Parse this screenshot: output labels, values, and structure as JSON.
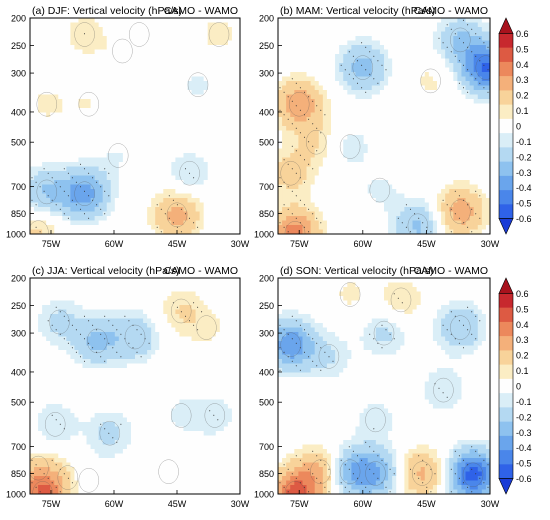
{
  "chart_data": [
    {
      "type": "heatmap",
      "title": "(a) DJF: Vertical velocity (hPa/s)",
      "subtitle": "CAMO - WAMO",
      "x_ticks": [
        "75W",
        "60W",
        "45W",
        "30W"
      ],
      "y_ticks": [
        "200",
        "250",
        "300",
        "400",
        "500",
        "700",
        "850",
        "1000"
      ],
      "xlim": [
        "80W",
        "30W"
      ],
      "ylim": [
        1000,
        200
      ],
      "features": [
        {
          "lon": -76,
          "p": 380,
          "value": 0.06
        },
        {
          "lon": -66,
          "p": 380,
          "value": 0.05
        },
        {
          "lon": -67,
          "p": 230,
          "value": 0.08
        },
        {
          "lon": -58,
          "p": 260,
          "value": 0.05
        },
        {
          "lon": -54,
          "p": 230,
          "value": -0.05
        },
        {
          "lon": -40,
          "p": 330,
          "value": -0.06
        },
        {
          "lon": -35,
          "p": 230,
          "value": 0.07
        },
        {
          "lon": -67,
          "p": 740,
          "value": -0.36
        },
        {
          "lon": -76,
          "p": 730,
          "value": -0.2
        },
        {
          "lon": -59,
          "p": 560,
          "value": -0.05
        },
        {
          "lon": -45,
          "p": 860,
          "value": 0.24
        },
        {
          "lon": -42,
          "p": 640,
          "value": -0.1
        },
        {
          "lon": -78,
          "p": 990,
          "value": 0.12
        }
      ]
    },
    {
      "type": "heatmap",
      "title": "(b) MAM: Vertical velocity (hPa/s)",
      "subtitle": "CAMO - WAMO",
      "x_ticks": [
        "75W",
        "60W",
        "45W",
        "30W"
      ],
      "y_ticks": [
        "200",
        "250",
        "300",
        "400",
        "500",
        "700",
        "850",
        "1000"
      ],
      "xlim": [
        "80W",
        "30W"
      ],
      "ylim": [
        1000,
        200
      ],
      "features": [
        {
          "lon": -75,
          "p": 380,
          "value": 0.28
        },
        {
          "lon": -77,
          "p": 640,
          "value": 0.14
        },
        {
          "lon": -71,
          "p": 500,
          "value": 0.1
        },
        {
          "lon": -60,
          "p": 290,
          "value": -0.25
        },
        {
          "lon": -63,
          "p": 520,
          "value": -0.08
        },
        {
          "lon": -44,
          "p": 320,
          "value": 0.06
        },
        {
          "lon": -31,
          "p": 290,
          "value": -0.5
        },
        {
          "lon": -37,
          "p": 240,
          "value": -0.2
        },
        {
          "lon": -37,
          "p": 840,
          "value": 0.26
        },
        {
          "lon": -47,
          "p": 940,
          "value": -0.22
        },
        {
          "lon": -76,
          "p": 995,
          "value": 0.35
        },
        {
          "lon": -56,
          "p": 720,
          "value": -0.06
        }
      ]
    },
    {
      "type": "heatmap",
      "title": "(c) JJA: Vertical velocity (hPa/s)",
      "subtitle": "CAMO - WAMO",
      "x_ticks": [
        "75W",
        "60W",
        "45W",
        "30W"
      ],
      "y_ticks": [
        "200",
        "250",
        "300",
        "400",
        "500",
        "700",
        "850",
        "1000"
      ],
      "xlim": [
        "80W",
        "30W"
      ],
      "ylim": [
        1000,
        200
      ],
      "features": [
        {
          "lon": -64,
          "p": 320,
          "value": -0.22
        },
        {
          "lon": -55,
          "p": 310,
          "value": -0.18
        },
        {
          "lon": -73,
          "p": 280,
          "value": -0.12
        },
        {
          "lon": -44,
          "p": 260,
          "value": 0.1
        },
        {
          "lon": -38,
          "p": 290,
          "value": 0.06
        },
        {
          "lon": -74,
          "p": 600,
          "value": -0.1
        },
        {
          "lon": -61,
          "p": 640,
          "value": -0.12
        },
        {
          "lon": -44,
          "p": 560,
          "value": -0.06
        },
        {
          "lon": -36,
          "p": 560,
          "value": -0.08
        },
        {
          "lon": -78,
          "p": 820,
          "value": 0.07
        },
        {
          "lon": -71,
          "p": 880,
          "value": 0.06
        },
        {
          "lon": -66,
          "p": 900,
          "value": -0.05
        },
        {
          "lon": -47,
          "p": 840,
          "value": 0.05
        },
        {
          "lon": -77,
          "p": 995,
          "value": 0.4
        }
      ]
    },
    {
      "type": "heatmap",
      "title": "(d) SON: Vertical velocity (hPa/s)",
      "subtitle": "CAMO - WAMO",
      "x_ticks": [
        "75W",
        "60W",
        "45W",
        "30W"
      ],
      "y_ticks": [
        "200",
        "250",
        "300",
        "400",
        "500",
        "700",
        "850",
        "1000"
      ],
      "xlim": [
        "80W",
        "30W"
      ],
      "ylim": [
        1000,
        200
      ],
      "features": [
        {
          "lon": -77,
          "p": 330,
          "value": -0.38
        },
        {
          "lon": -68,
          "p": 360,
          "value": -0.1
        },
        {
          "lon": -55,
          "p": 300,
          "value": -0.12
        },
        {
          "lon": -63,
          "p": 230,
          "value": 0.06
        },
        {
          "lon": -51,
          "p": 240,
          "value": 0.1
        },
        {
          "lon": -37,
          "p": 290,
          "value": -0.2
        },
        {
          "lon": -41,
          "p": 460,
          "value": -0.1
        },
        {
          "lon": -70,
          "p": 840,
          "value": 0.22
        },
        {
          "lon": -63,
          "p": 840,
          "value": -0.26
        },
        {
          "lon": -57,
          "p": 850,
          "value": -0.28
        },
        {
          "lon": -46,
          "p": 850,
          "value": 0.22
        },
        {
          "lon": -34,
          "p": 860,
          "value": -0.55
        },
        {
          "lon": -76,
          "p": 995,
          "value": 0.42
        },
        {
          "lon": -57,
          "p": 580,
          "value": -0.08
        }
      ]
    }
  ],
  "colorbars": [
    {
      "labels": [
        "0.6",
        "0.5",
        "0.4",
        "0.3",
        "0.2",
        "0.1",
        "0",
        "-0.1",
        "-0.2",
        "-0.3",
        "-0.4",
        "-0.5",
        "-0.6"
      ]
    },
    {
      "labels": [
        "0.6",
        "0.5",
        "0.4",
        "0.3",
        "0.2",
        "0.1",
        "0",
        "-0.1",
        "-0.2",
        "-0.3",
        "-0.4",
        "-0.5",
        "-0.6"
      ]
    }
  ],
  "palette": {
    "colors": [
      "#1a3cd6",
      "#2f62e8",
      "#4a86ea",
      "#6aa5ec",
      "#8ec2ef",
      "#b4d9f2",
      "#daeef7",
      "#fefefe",
      "#fbedc4",
      "#f8d39a",
      "#f4b07a",
      "#ec885c",
      "#dd5a43",
      "#c7282e",
      "#a8121d"
    ],
    "levels": [
      -0.6,
      -0.5,
      -0.4,
      -0.3,
      -0.2,
      -0.1,
      -0.05,
      0.05,
      0.1,
      0.2,
      0.3,
      0.4,
      0.5,
      0.6
    ]
  }
}
